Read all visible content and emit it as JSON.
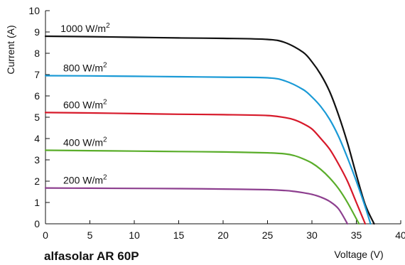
{
  "chart_data": {
    "type": "line",
    "title": "alfasolar AR 60P",
    "xlabel": "Voltage (V)",
    "ylabel": "Current (A)",
    "xlim": [
      0,
      40
    ],
    "ylim": [
      0,
      10
    ],
    "xticks": [
      0,
      5,
      10,
      15,
      20,
      25,
      30,
      35,
      40
    ],
    "yticks": [
      0,
      1,
      2,
      3,
      4,
      5,
      6,
      7,
      8,
      9,
      10
    ],
    "grid": false,
    "legend": "inline labels above curves",
    "series": [
      {
        "name": "1000 W/m2",
        "label_main": "1000 W/m",
        "label_sup": "2",
        "color": "#111111",
        "x": [
          0,
          5,
          10,
          15,
          20,
          25,
          27,
          29,
          30,
          31,
          32,
          33,
          34,
          35,
          36,
          37.0
        ],
        "y": [
          8.8,
          8.78,
          8.75,
          8.72,
          8.7,
          8.65,
          8.5,
          8.05,
          7.6,
          7.0,
          6.2,
          5.1,
          3.8,
          2.3,
          0.9,
          0
        ]
      },
      {
        "name": "800 W/m2",
        "label_main": "800 W/m",
        "label_sup": "2",
        "color": "#1a9ad6",
        "x": [
          0,
          5,
          10,
          15,
          20,
          25,
          27,
          29,
          30,
          31,
          32,
          33,
          34,
          35,
          36,
          36.6
        ],
        "y": [
          6.95,
          6.94,
          6.92,
          6.9,
          6.88,
          6.85,
          6.7,
          6.3,
          5.95,
          5.5,
          4.9,
          4.1,
          3.1,
          2.0,
          0.8,
          0
        ]
      },
      {
        "name": "600 W/m2",
        "label_main": "600 W/m",
        "label_sup": "2",
        "color": "#d7192a",
        "x": [
          0,
          5,
          10,
          15,
          20,
          25,
          27,
          28,
          29,
          30,
          31,
          32,
          33,
          34,
          35,
          36.0
        ],
        "y": [
          5.22,
          5.2,
          5.17,
          5.14,
          5.12,
          5.08,
          4.98,
          4.88,
          4.7,
          4.45,
          4.0,
          3.5,
          2.8,
          2.0,
          1.0,
          0
        ]
      },
      {
        "name": "400 W/m2",
        "label_main": "400 W/m",
        "label_sup": "2",
        "color": "#5aad2a",
        "x": [
          0,
          5,
          10,
          15,
          20,
          25,
          27,
          28,
          29,
          30,
          31,
          32,
          33,
          34,
          35.3
        ],
        "y": [
          3.45,
          3.43,
          3.41,
          3.39,
          3.37,
          3.33,
          3.28,
          3.2,
          3.05,
          2.85,
          2.55,
          2.15,
          1.65,
          1.0,
          0
        ]
      },
      {
        "name": "200 W/m2",
        "label_main": "200 W/m",
        "label_sup": "2",
        "color": "#8d3f8f",
        "x": [
          0,
          5,
          10,
          15,
          20,
          25,
          27,
          28,
          29,
          30,
          31,
          32,
          33,
          34.0
        ],
        "y": [
          1.68,
          1.67,
          1.66,
          1.65,
          1.63,
          1.6,
          1.56,
          1.52,
          1.46,
          1.38,
          1.25,
          1.05,
          0.7,
          0
        ]
      }
    ]
  }
}
